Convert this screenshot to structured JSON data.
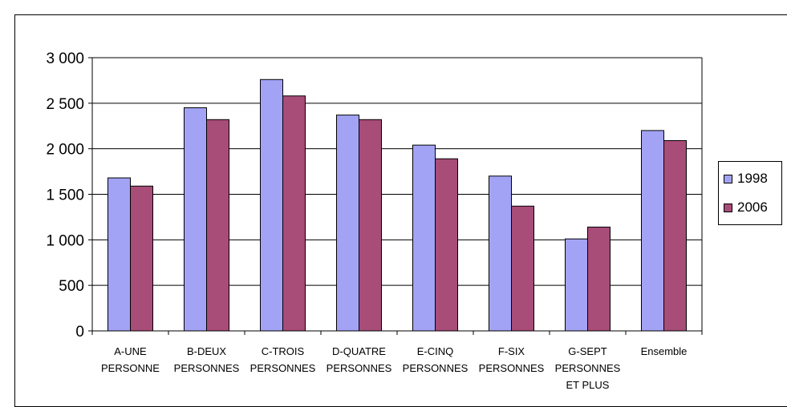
{
  "chart_data": {
    "type": "bar",
    "categories": [
      [
        "A-UNE",
        "PERSONNE"
      ],
      [
        "B-DEUX",
        "PERSONNES"
      ],
      [
        "C-TROIS",
        "PERSONNES"
      ],
      [
        "D-QUATRE",
        "PERSONNES"
      ],
      [
        "E-CINQ",
        "PERSONNES"
      ],
      [
        "F-SIX",
        "PERSONNES"
      ],
      [
        "G-SEPT",
        "PERSONNES",
        "ET PLUS"
      ],
      [
        "Ensemble"
      ]
    ],
    "series": [
      {
        "name": "1998",
        "color": "#a3a3f5",
        "values": [
          1680,
          2450,
          2760,
          2370,
          2040,
          1700,
          1010,
          2200
        ]
      },
      {
        "name": "2006",
        "color": "#a84c78",
        "values": [
          1590,
          2320,
          2580,
          2320,
          1890,
          1370,
          1140,
          2090
        ]
      }
    ],
    "ylim": [
      0,
      3000
    ],
    "yticks": [
      0,
      500,
      1000,
      1500,
      2000,
      2500,
      3000
    ],
    "ytick_labels": [
      "0",
      "500",
      "1 000",
      "1 500",
      "2 000",
      "2 500",
      "3 000"
    ],
    "grid": true,
    "legend_position": "right"
  }
}
